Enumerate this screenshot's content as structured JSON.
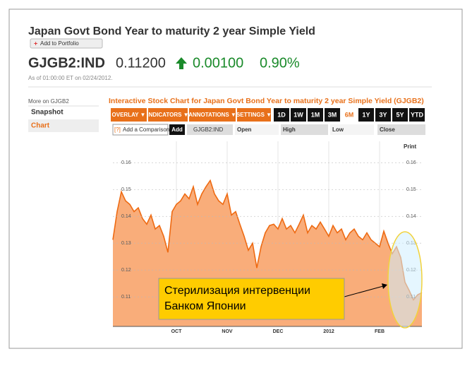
{
  "header": {
    "title": "Japan Govt Bond Year to maturity 2 year Simple Yield",
    "add_icon": "+",
    "add_button": "Add to Portfolio",
    "ticker": "GJGB2:IND",
    "price": "0.11200",
    "change": "0.00100",
    "change_pct": "0.90%",
    "timestamp": "As of 01:00:00 ET on 02/24/2012."
  },
  "sidebar": {
    "heading": "More on GJGB2",
    "links": [
      "Snapshot",
      "Chart"
    ]
  },
  "toolbar": {
    "menus": [
      "OVERLAY ▼",
      "INDICATORS ▼",
      "ANNOTATIONS ▼",
      "SETTINGS ▼"
    ],
    "ranges": [
      {
        "label": "1D"
      },
      {
        "label": "1W"
      },
      {
        "label": "1M"
      },
      {
        "label": "3M"
      },
      {
        "label": "6M",
        "active": true
      },
      {
        "label": "1Y"
      },
      {
        "label": "3Y"
      },
      {
        "label": "5Y"
      },
      {
        "label": "YTD"
      }
    ]
  },
  "compare": {
    "help": "[?]",
    "placeholder": "Add a Comparison",
    "button": "Add",
    "symbol": "GJGB2:IND",
    "fields": [
      "Open",
      "High",
      "Low",
      "Close"
    ]
  },
  "chart_data": {
    "type": "area",
    "title": "Interactive Stock Chart for Japan Govt Bond Year to maturity 2 year Simple Yield (GJGB2)",
    "print": "Print",
    "categories": [
      null,
      null,
      null,
      null,
      null,
      null,
      null,
      null,
      null,
      null,
      null,
      null,
      null,
      null,
      null,
      "OCT",
      null,
      null,
      null,
      null,
      null,
      null,
      null,
      null,
      null,
      null,
      null,
      "NOV",
      null,
      null,
      null,
      null,
      null,
      null,
      null,
      null,
      null,
      null,
      null,
      "DEC",
      null,
      null,
      null,
      null,
      null,
      null,
      null,
      null,
      null,
      null,
      null,
      "2012",
      null,
      null,
      null,
      null,
      null,
      null,
      null,
      null,
      null,
      null,
      null,
      "FEB",
      null,
      null,
      null,
      null,
      null,
      null,
      null,
      null,
      null,
      null
    ],
    "values": [
      0.1313,
      0.1418,
      0.1492,
      0.1458,
      0.1445,
      0.1418,
      0.1432,
      0.1392,
      0.1371,
      0.1405,
      0.1353,
      0.1366,
      0.1326,
      0.1266,
      0.1418,
      0.1445,
      0.1458,
      0.1484,
      0.1466,
      0.1511,
      0.1445,
      0.1484,
      0.1511,
      0.1534,
      0.1484,
      0.1458,
      0.1445,
      0.1484,
      0.1405,
      0.1418,
      0.1371,
      0.1326,
      0.1274,
      0.13,
      0.1208,
      0.1287,
      0.1339,
      0.1366,
      0.1371,
      0.1353,
      0.1392,
      0.1353,
      0.1366,
      0.1339,
      0.1371,
      0.1405,
      0.1339,
      0.1366,
      0.1353,
      0.1379,
      0.1353,
      0.1326,
      0.1366,
      0.1339,
      0.1353,
      0.1313,
      0.1339,
      0.1353,
      0.1326,
      0.1313,
      0.1339,
      0.1313,
      0.13,
      0.1287,
      0.1345,
      0.13,
      0.1261,
      0.1287,
      0.1247,
      0.1155,
      0.1124,
      0.1089,
      0.1108,
      0.1116
    ],
    "color": "#f9ad7a",
    "line_color": "#ee6a12",
    "ylim": [
      0.099,
      0.168
    ],
    "yticks": [
      0.11,
      0.12,
      0.13,
      0.14,
      0.15,
      0.16
    ],
    "grid": true,
    "annotation": [
      "Стерилизация интервенции",
      "Банком Японии"
    ]
  }
}
